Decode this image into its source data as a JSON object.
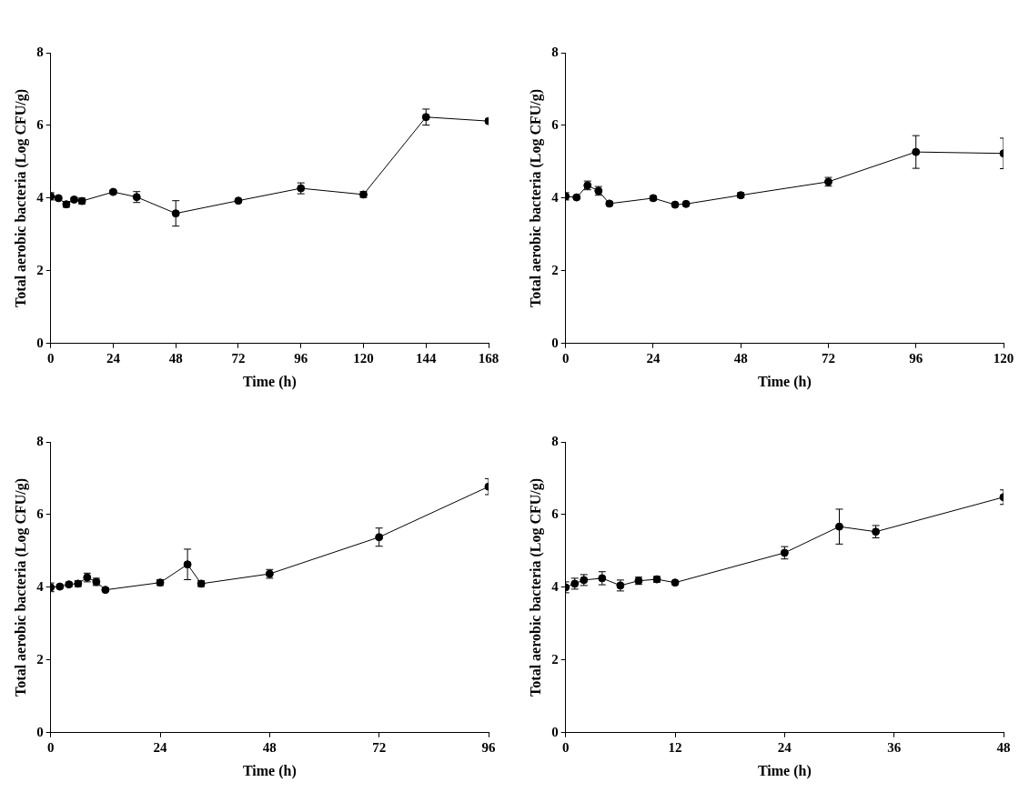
{
  "chart_data": [
    {
      "type": "line",
      "x_label": "Time (h)",
      "y_label": "Total aerobic bacteria (Log CFU/g)",
      "x": [
        0,
        3,
        6,
        9,
        12,
        24,
        33,
        48,
        72,
        96,
        120,
        144,
        168
      ],
      "series": [
        {
          "color": "#000000",
          "marker": "circle",
          "line_style": "solid",
          "values": [
            4.05,
            4.0,
            3.83,
            3.96,
            3.92,
            4.17,
            4.03,
            3.58,
            3.93,
            4.27,
            4.1,
            6.23,
            6.12
          ],
          "errors": [
            0.1,
            0.05,
            0.08,
            0.05,
            0.08,
            0.05,
            0.15,
            0.35,
            0.04,
            0.15,
            0.08,
            0.22,
            0.06
          ]
        }
      ],
      "xlim": [
        0,
        168
      ],
      "xticks": [
        0,
        24,
        48,
        72,
        96,
        120,
        144,
        168
      ],
      "ylim": [
        0,
        8
      ],
      "yticks": [
        0,
        2,
        4,
        6,
        8
      ],
      "grid": false
    },
    {
      "type": "line",
      "x_label": "Time (h)",
      "y_label": "Total aerobic bacteria (Log CFU/g)",
      "x": [
        0,
        3,
        6,
        9,
        12,
        24,
        30,
        33,
        48,
        72,
        96,
        120
      ],
      "series": [
        {
          "color": "#000000",
          "marker": "circle",
          "line_style": "solid",
          "values": [
            4.05,
            4.02,
            4.35,
            4.2,
            3.85,
            4.0,
            3.82,
            3.84,
            4.08,
            4.45,
            5.27,
            5.23
          ],
          "errors": [
            0.1,
            0.04,
            0.12,
            0.12,
            0.05,
            0.06,
            0.04,
            0.05,
            0.07,
            0.12,
            0.45,
            0.42
          ]
        }
      ],
      "xlim": [
        0,
        120
      ],
      "xticks": [
        0,
        24,
        48,
        72,
        96,
        120
      ],
      "ylim": [
        0,
        8
      ],
      "yticks": [
        0,
        2,
        4,
        6,
        8
      ],
      "grid": false
    },
    {
      "type": "line",
      "x_label": "Time (h)",
      "y_label": "Total aerobic bacteria (Log CFU/g)",
      "x": [
        0,
        2,
        4,
        6,
        8,
        10,
        12,
        24,
        30,
        33,
        48,
        72,
        96
      ],
      "series": [
        {
          "color": "#000000",
          "marker": "circle",
          "line_style": "solid",
          "values": [
            4.0,
            4.02,
            4.08,
            4.1,
            4.27,
            4.15,
            3.93,
            4.13,
            4.63,
            4.1,
            4.37,
            5.38,
            6.77
          ],
          "errors": [
            0.12,
            0.05,
            0.06,
            0.08,
            0.12,
            0.1,
            0.04,
            0.08,
            0.42,
            0.08,
            0.12,
            0.25,
            0.22
          ]
        }
      ],
      "xlim": [
        0,
        96
      ],
      "xticks": [
        0,
        24,
        48,
        72,
        96
      ],
      "ylim": [
        0,
        8
      ],
      "yticks": [
        0,
        2,
        4,
        6,
        8
      ],
      "grid": false
    },
    {
      "type": "line",
      "x_label": "Time (h)",
      "y_label": "Total aerobic bacteria (Log CFU/g)",
      "x": [
        0,
        1,
        2,
        4,
        6,
        8,
        10,
        12,
        24,
        30,
        34,
        48
      ],
      "series": [
        {
          "color": "#000000",
          "marker": "circle",
          "line_style": "solid",
          "values": [
            4.0,
            4.1,
            4.2,
            4.25,
            4.05,
            4.18,
            4.22,
            4.13,
            4.95,
            5.67,
            5.53,
            6.48
          ],
          "errors": [
            0.15,
            0.15,
            0.15,
            0.18,
            0.15,
            0.1,
            0.08,
            0.05,
            0.17,
            0.48,
            0.17,
            0.2
          ]
        }
      ],
      "xlim": [
        0,
        48
      ],
      "xticks": [
        0,
        12,
        24,
        36,
        48
      ],
      "ylim": [
        0,
        8
      ],
      "yticks": [
        0,
        2,
        4,
        6,
        8
      ],
      "grid": false
    }
  ]
}
